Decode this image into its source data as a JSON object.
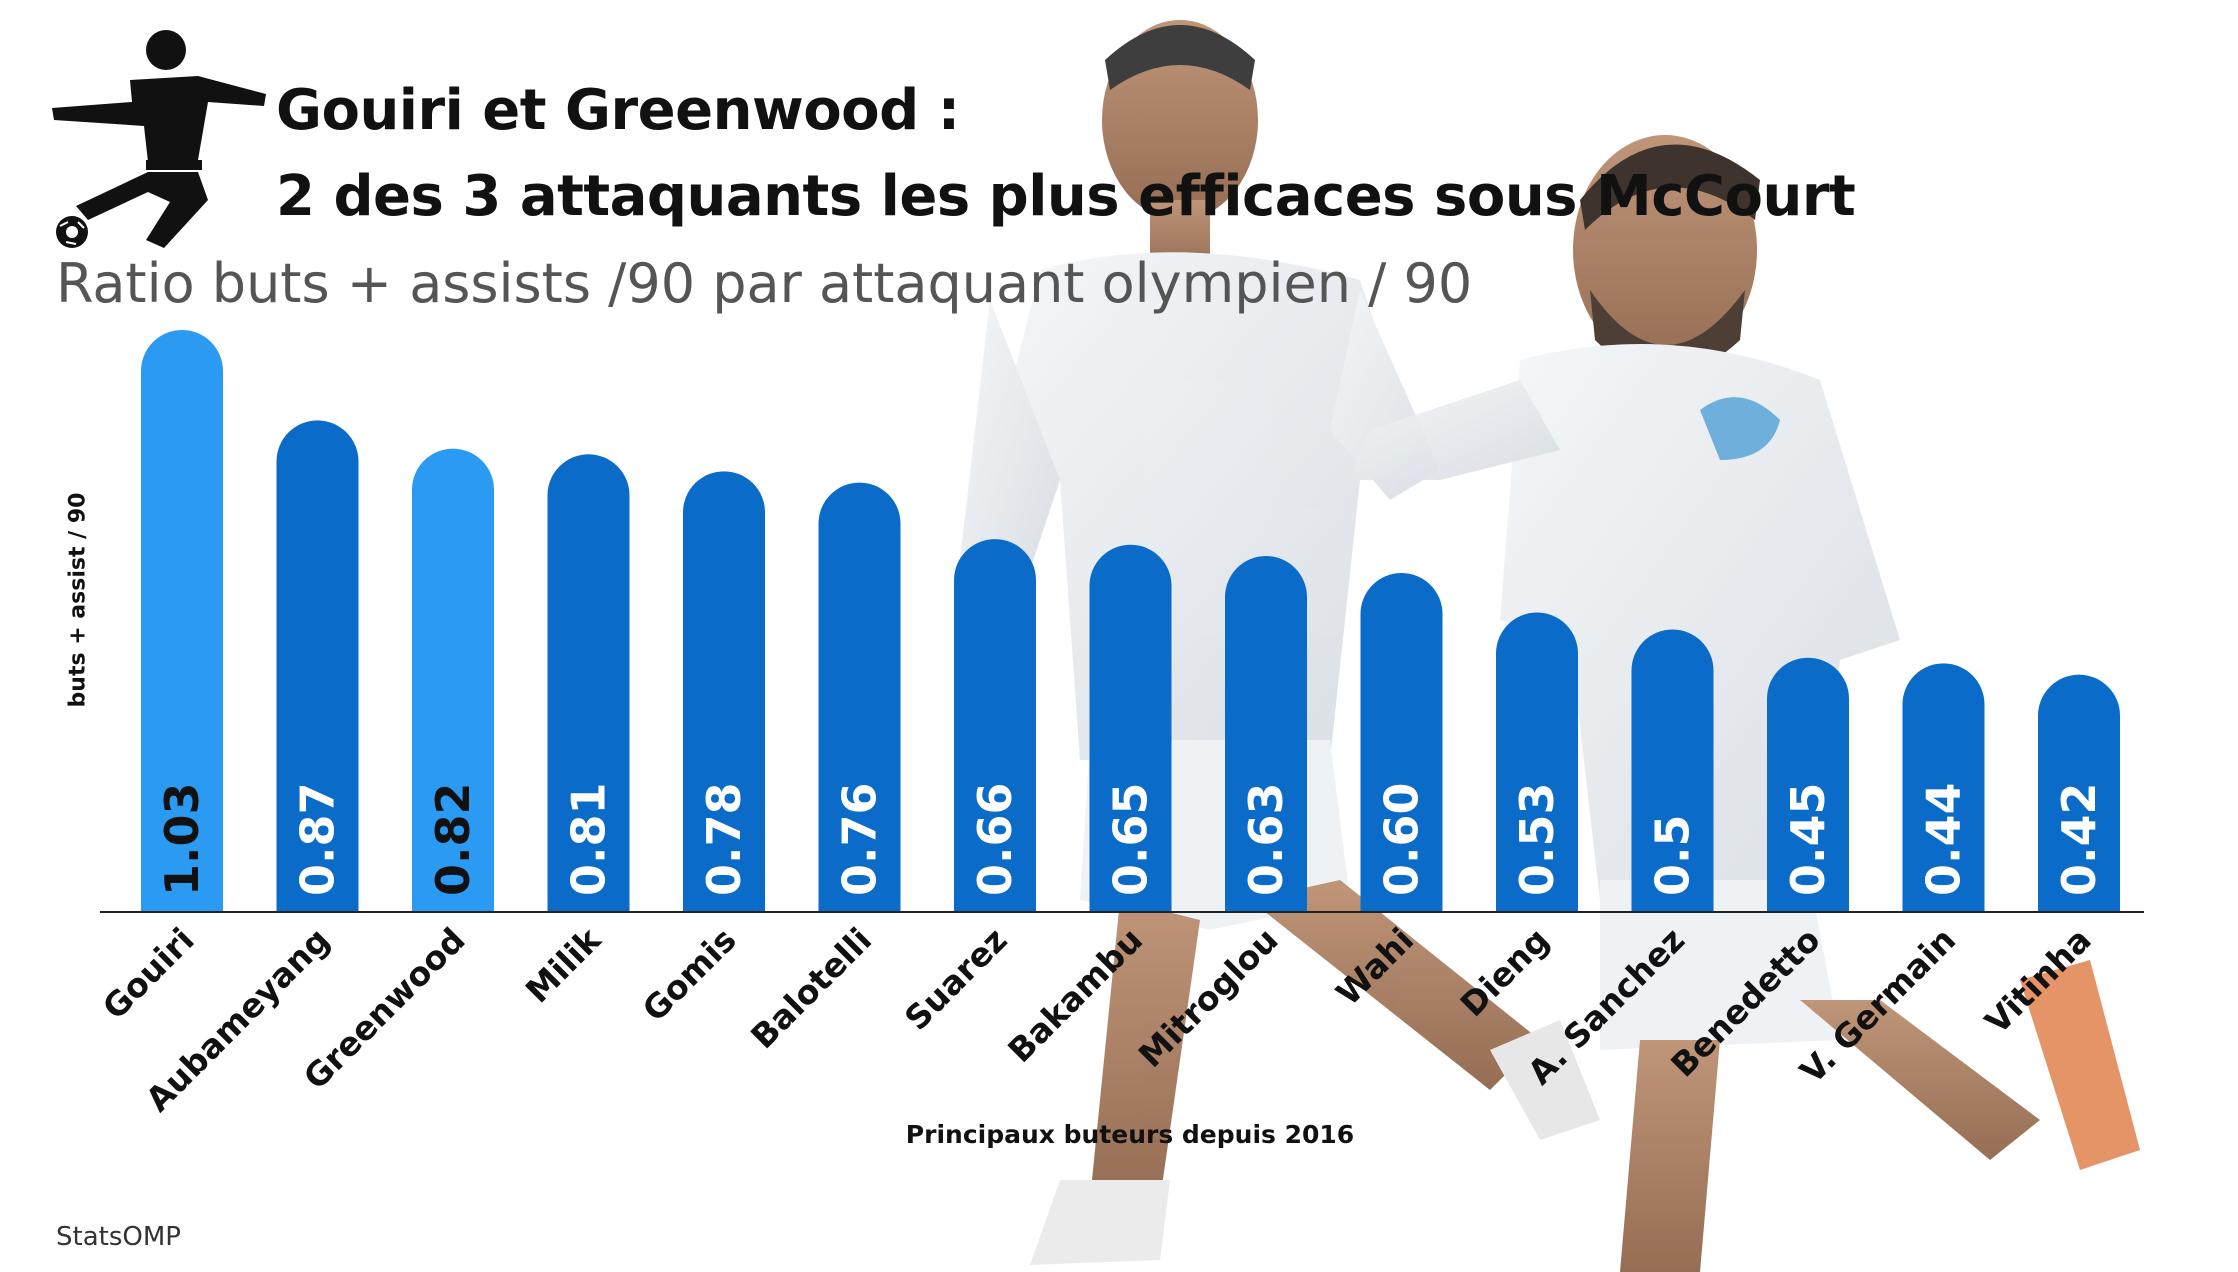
{
  "header": {
    "title_line1": "Gouiri et Greenwood :",
    "title_line2": "2 des 3 attaquants les plus efficaces sous McCourt",
    "subtitle": "Ratio buts + assists /90 par attaquant olympien / 90"
  },
  "source": "StatsOMP",
  "colors": {
    "highlight": "#2b9af3",
    "default": "#0a6bc8",
    "highlight_label": "#111111",
    "default_label": "#ffffff"
  },
  "icons": [
    "soccer-kicker-icon",
    "players-photo"
  ],
  "chart_data": {
    "type": "bar",
    "title": "Gouiri et Greenwood : 2 des 3 attaquants les plus efficaces sous McCourt",
    "subtitle": "Ratio buts + assists /90 par attaquant olympien / 90",
    "xlabel": "Principaux buteurs depuis 2016",
    "ylabel": "buts + assist / 90",
    "categories": [
      "Gouiri",
      "Aubameyang",
      "Greenwood",
      "Milik",
      "Gomis",
      "Balotelli",
      "Suarez",
      "Bakambu",
      "Mitroglou",
      "Wahi",
      "Dieng",
      "A. Sanchez",
      "Benedetto",
      "V. Germain",
      "Vitinha"
    ],
    "values": [
      1.03,
      0.87,
      0.82,
      0.81,
      0.78,
      0.76,
      0.66,
      0.65,
      0.63,
      0.6,
      0.53,
      0.5,
      0.45,
      0.44,
      0.42
    ],
    "labels": [
      "1.03",
      "0.87",
      "0.82",
      "0.81",
      "0.78",
      "0.76",
      "0.66",
      "0.65",
      "0.63",
      "0.60",
      "0.53",
      "0.5",
      "0.45",
      "0.44",
      "0.42"
    ],
    "highlighted": [
      "Gouiri",
      "Greenwood"
    ],
    "ylim": [
      0,
      1.05
    ],
    "grid": false,
    "legend": "none"
  }
}
